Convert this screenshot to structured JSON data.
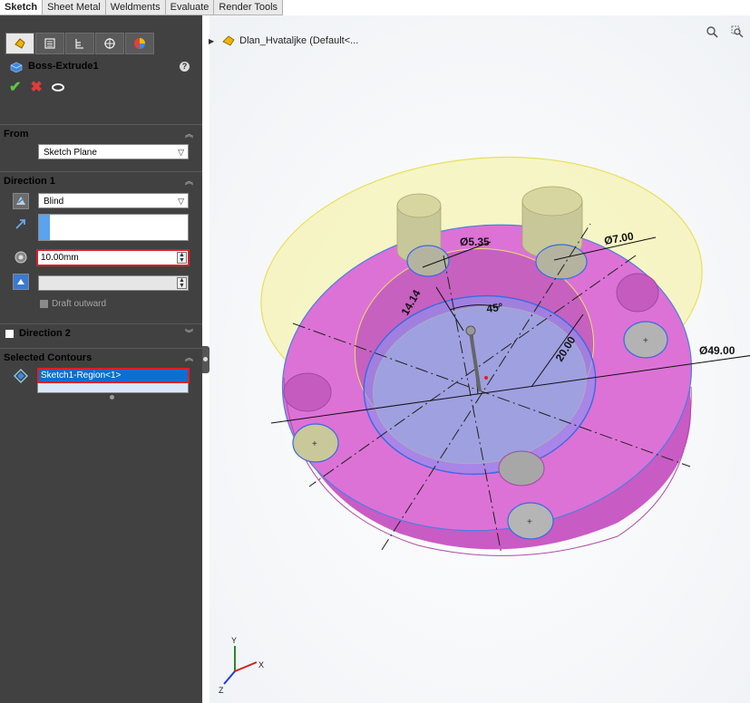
{
  "tabs": [
    "Sketch",
    "Sheet Metal",
    "Weldments",
    "Evaluate",
    "Render Tools"
  ],
  "feature": {
    "title": "Boss-Extrude1",
    "icons": {
      "ok": "✔",
      "cancel": "✖"
    }
  },
  "from": {
    "header": "From",
    "value": "Sketch Plane"
  },
  "direction1": {
    "header": "Direction 1",
    "end_condition": "Blind",
    "depth": "10.00mm",
    "draft_outward": "Draft outward"
  },
  "direction2": {
    "header": "Direction 2"
  },
  "selected_contours": {
    "header": "Selected Contours",
    "item": "Sketch1-Region<1>"
  },
  "tree": {
    "part_name": "Dlan_Hvataljke  (Default<..."
  },
  "dimensions": {
    "d_hole_small": "Ø5.35",
    "d_hole_large": "Ø7.00",
    "d_outer": "Ø49.00",
    "angle": "45°",
    "length_a": "14.14",
    "length_b": "20.00"
  },
  "axes": {
    "x": "X",
    "y": "Y",
    "z": "Z"
  },
  "colors": {
    "accent_selection": "#0a6fcf",
    "highlight_red": "#e01e24",
    "body_magenta": "#d86ad3",
    "preview_yellow": "#f4f1a6"
  }
}
